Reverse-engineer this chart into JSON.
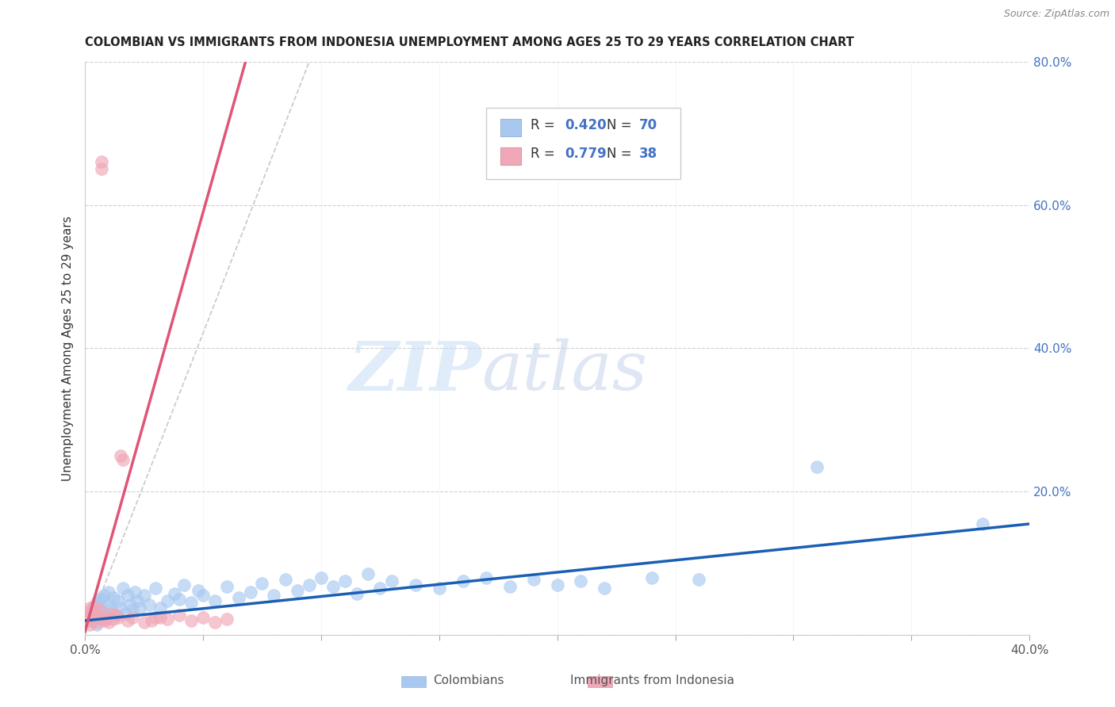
{
  "title": "COLOMBIAN VS IMMIGRANTS FROM INDONESIA UNEMPLOYMENT AMONG AGES 25 TO 29 YEARS CORRELATION CHART",
  "source": "Source: ZipAtlas.com",
  "ylabel": "Unemployment Among Ages 25 to 29 years",
  "xlim": [
    0.0,
    0.4
  ],
  "ylim": [
    0.0,
    0.8
  ],
  "xticks": [
    0.0,
    0.05,
    0.1,
    0.15,
    0.2,
    0.25,
    0.3,
    0.35,
    0.4
  ],
  "yticks": [
    0.0,
    0.2,
    0.4,
    0.6,
    0.8
  ],
  "watermark_zip": "ZIP",
  "watermark_atlas": "atlas",
  "legend_r1": "R = 0.420",
  "legend_n1": "N = 70",
  "legend_r2": "R = 0.779",
  "legend_n2": "N = 38",
  "color_colombians": "#a8c8f0",
  "color_indonesia": "#f0a8b8",
  "color_trend_blue": "#1a5fb4",
  "color_trend_pink": "#e05575",
  "color_dashed": "#c8c8c8",
  "scatter_colombians_x": [
    0.001,
    0.002,
    0.003,
    0.003,
    0.004,
    0.004,
    0.005,
    0.005,
    0.006,
    0.006,
    0.007,
    0.007,
    0.008,
    0.008,
    0.009,
    0.01,
    0.01,
    0.011,
    0.012,
    0.013,
    0.014,
    0.015,
    0.016,
    0.017,
    0.018,
    0.019,
    0.02,
    0.021,
    0.022,
    0.023,
    0.025,
    0.027,
    0.03,
    0.032,
    0.035,
    0.038,
    0.04,
    0.042,
    0.045,
    0.048,
    0.05,
    0.055,
    0.06,
    0.065,
    0.07,
    0.075,
    0.08,
    0.085,
    0.09,
    0.095,
    0.1,
    0.105,
    0.11,
    0.115,
    0.12,
    0.125,
    0.13,
    0.14,
    0.15,
    0.16,
    0.17,
    0.18,
    0.19,
    0.2,
    0.21,
    0.22,
    0.24,
    0.26,
    0.31,
    0.38
  ],
  "scatter_colombians_y": [
    0.025,
    0.03,
    0.02,
    0.035,
    0.028,
    0.04,
    0.015,
    0.045,
    0.038,
    0.05,
    0.022,
    0.048,
    0.03,
    0.055,
    0.025,
    0.042,
    0.06,
    0.035,
    0.052,
    0.028,
    0.048,
    0.038,
    0.065,
    0.03,
    0.055,
    0.042,
    0.035,
    0.06,
    0.048,
    0.038,
    0.055,
    0.042,
    0.065,
    0.038,
    0.048,
    0.058,
    0.05,
    0.07,
    0.045,
    0.062,
    0.055,
    0.048,
    0.068,
    0.052,
    0.06,
    0.072,
    0.055,
    0.078,
    0.062,
    0.07,
    0.08,
    0.068,
    0.075,
    0.058,
    0.085,
    0.065,
    0.075,
    0.07,
    0.065,
    0.075,
    0.08,
    0.068,
    0.078,
    0.07,
    0.075,
    0.065,
    0.08,
    0.078,
    0.235,
    0.155
  ],
  "scatter_indonesia_x": [
    0.0,
    0.001,
    0.001,
    0.002,
    0.002,
    0.002,
    0.003,
    0.003,
    0.004,
    0.004,
    0.005,
    0.005,
    0.006,
    0.006,
    0.007,
    0.007,
    0.008,
    0.008,
    0.009,
    0.01,
    0.011,
    0.012,
    0.013,
    0.014,
    0.015,
    0.016,
    0.018,
    0.02,
    0.025,
    0.03,
    0.035,
    0.04,
    0.045,
    0.05,
    0.055,
    0.06,
    0.028,
    0.032
  ],
  "scatter_indonesia_y": [
    0.02,
    0.025,
    0.032,
    0.015,
    0.025,
    0.038,
    0.02,
    0.03,
    0.025,
    0.04,
    0.018,
    0.028,
    0.025,
    0.035,
    0.65,
    0.66,
    0.02,
    0.025,
    0.022,
    0.018,
    0.03,
    0.022,
    0.028,
    0.025,
    0.25,
    0.245,
    0.02,
    0.025,
    0.018,
    0.025,
    0.022,
    0.028,
    0.02,
    0.025,
    0.018,
    0.022,
    0.02,
    0.025
  ],
  "trend_blue_x0": 0.0,
  "trend_blue_x1": 0.4,
  "trend_blue_y0": 0.02,
  "trend_blue_y1": 0.155,
  "trend_pink_x0": 0.0,
  "trend_pink_x1": 0.068,
  "trend_pink_y0": 0.005,
  "trend_pink_y1": 0.8,
  "trend_dash_x0": 0.0,
  "trend_dash_x1": 0.095,
  "trend_dash_y0": 0.0,
  "trend_dash_y1": 0.8
}
